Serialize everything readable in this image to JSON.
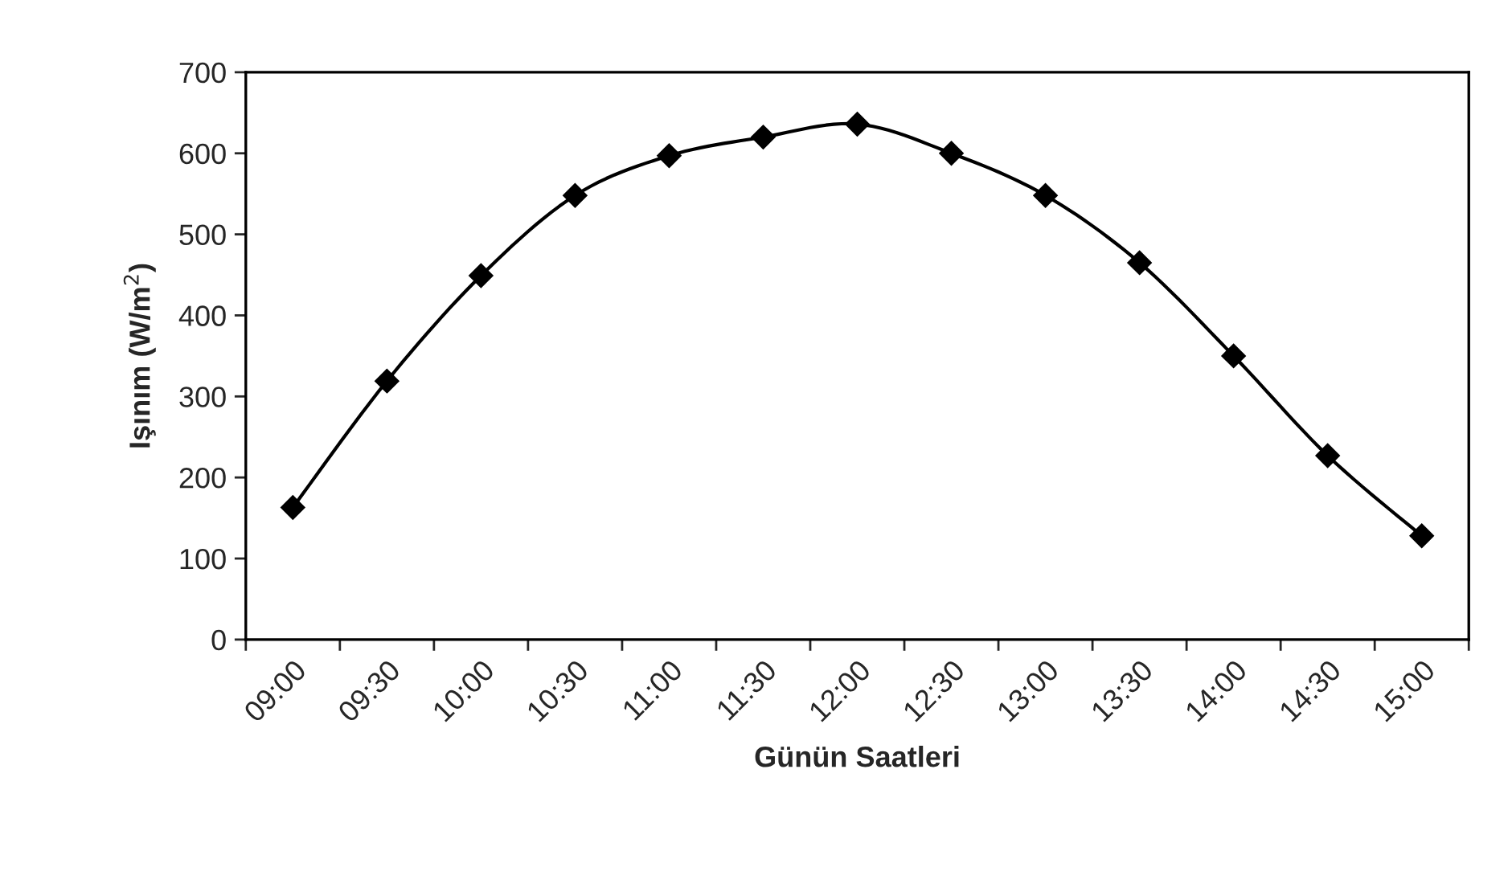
{
  "chart_data": {
    "type": "line",
    "xlabel": "Günün Saatleri",
    "ylabel": "Işınım (W/m$^{2}$)",
    "categories": [
      "09:00",
      "09:30",
      "10:00",
      "10:30",
      "11:00",
      "11:30",
      "12:00",
      "12:30",
      "13:00",
      "13:30",
      "14:00",
      "14:30",
      "15:00"
    ],
    "series": [
      {
        "color": "#000000",
        "values": [
          163,
          319,
          449,
          548,
          597,
          620,
          636,
          600,
          548,
          465,
          350,
          227,
          128
        ]
      }
    ],
    "ylim": [
      0,
      700
    ],
    "yticks": [
      0,
      100,
      200,
      300,
      400,
      500,
      600,
      700
    ],
    "grid": false,
    "legend": false,
    "marker": "diamond",
    "line_style": "solid"
  }
}
